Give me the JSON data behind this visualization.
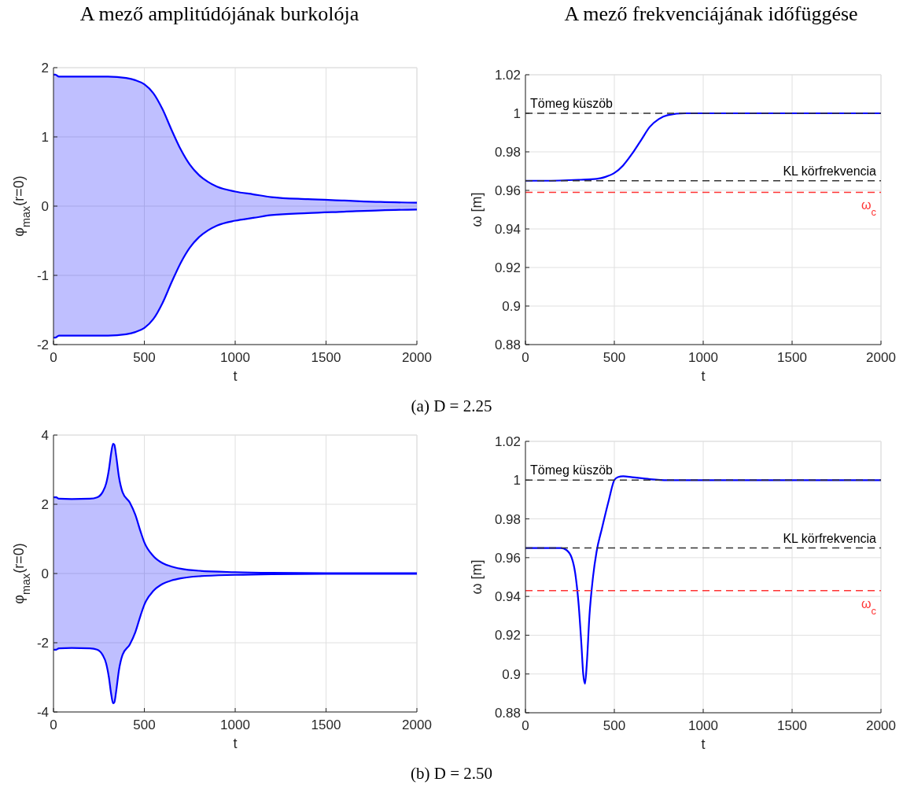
{
  "chart_data": [
    {
      "type": "line",
      "title": "A mező amplitúdójának burkolója",
      "xlabel": "t",
      "ylabel": "φ$_{max}$(r=0)",
      "xlim": [
        0,
        2000
      ],
      "xticks": [
        0,
        500,
        1000,
        1500,
        2000
      ],
      "ylim": [
        -2,
        2
      ],
      "yticks": [
        -2,
        -1,
        0,
        1,
        2
      ],
      "grid": true,
      "line_style": "solid",
      "series": [
        {
          "color": "#0000ff",
          "x": [
            0,
            10,
            30,
            100,
            300,
            400,
            450,
            500,
            550,
            600,
            650,
            700,
            750,
            800,
            850,
            900,
            1000,
            1100,
            1200,
            1400,
            1600,
            1800,
            2000
          ],
          "values": [
            1.9,
            1.9,
            1.87,
            1.87,
            1.87,
            1.85,
            1.82,
            1.76,
            1.63,
            1.4,
            1.1,
            0.82,
            0.6,
            0.45,
            0.35,
            0.28,
            0.21,
            0.17,
            0.13,
            0.1,
            0.08,
            0.06,
            0.05
          ],
          "lower": [
            -1.9,
            -1.9,
            -1.87,
            -1.87,
            -1.87,
            -1.85,
            -1.82,
            -1.76,
            -1.63,
            -1.4,
            -1.1,
            -0.82,
            -0.6,
            -0.45,
            -0.35,
            -0.28,
            -0.21,
            -0.17,
            -0.13,
            -0.1,
            -0.08,
            -0.06,
            -0.05
          ],
          "upper": [
            1.9,
            1.9,
            1.87,
            1.87,
            1.87,
            1.85,
            1.82,
            1.76,
            1.63,
            1.4,
            1.1,
            0.82,
            0.6,
            0.45,
            0.35,
            0.28,
            0.21,
            0.17,
            0.13,
            0.1,
            0.08,
            0.06,
            0.05
          ]
        },
        {
          "color": "#0000ff",
          "x": [
            0,
            10,
            30,
            100,
            300,
            400,
            450,
            500,
            550,
            600,
            650,
            700,
            750,
            800,
            850,
            900,
            1000,
            1100,
            1200,
            1400,
            1600,
            1800,
            2000
          ],
          "values": [
            -1.9,
            -1.9,
            -1.87,
            -1.87,
            -1.87,
            -1.85,
            -1.82,
            -1.76,
            -1.63,
            -1.4,
            -1.1,
            -0.82,
            -0.6,
            -0.45,
            -0.35,
            -0.28,
            -0.21,
            -0.17,
            -0.13,
            -0.1,
            -0.08,
            -0.06,
            -0.05
          ]
        }
      ],
      "annotations": [
        "(a) D = 2.25"
      ]
    },
    {
      "type": "line",
      "title": "A mező frekvenciájának időfüggése",
      "xlabel": "t",
      "ylabel": "ω [m]",
      "xlim": [
        0,
        2000
      ],
      "xticks": [
        0,
        500,
        1000,
        1500,
        2000
      ],
      "ylim": [
        0.88,
        1.02
      ],
      "yticks": [
        0.88,
        0.9,
        0.92,
        0.94,
        0.96,
        0.98,
        1,
        1.02
      ],
      "grid": true,
      "line_style": "solid",
      "series": [
        {
          "color": "#0000ff",
          "x": [
            0,
            100,
            300,
            400,
            450,
            500,
            550,
            600,
            650,
            700,
            750,
            800,
            900,
            1000,
            2000
          ],
          "values": [
            0.965,
            0.965,
            0.9655,
            0.966,
            0.967,
            0.969,
            0.973,
            0.979,
            0.986,
            0.993,
            0.997,
            0.999,
            1,
            1,
            1
          ]
        }
      ],
      "ref_lines": [
        {
          "axis": "y",
          "value": 1,
          "label": "Tömeg küszöb",
          "color": "#333333",
          "line_style": "dashed"
        },
        {
          "axis": "y",
          "value": 0.965,
          "label": "KL körfrekvencia",
          "color": "#333333",
          "line_style": "dashed"
        },
        {
          "axis": "y",
          "value": 0.959,
          "label": "ω$_{c}$",
          "color": "#ff3333",
          "line_style": "dashed"
        }
      ]
    },
    {
      "type": "line",
      "xlabel": "t",
      "ylabel": "φ$_{max}$(r=0)",
      "xlim": [
        0,
        2000
      ],
      "xticks": [
        0,
        500,
        1000,
        1500,
        2000
      ],
      "ylim": [
        -4,
        4
      ],
      "yticks": [
        -4,
        -2,
        0,
        2,
        4
      ],
      "grid": true,
      "line_style": "solid",
      "series": [
        {
          "color": "#0000ff",
          "x": [
            0,
            15,
            30,
            100,
            200,
            240,
            270,
            290,
            305,
            318,
            328,
            335,
            345,
            360,
            380,
            420,
            450,
            480,
            500,
            550,
            600,
            650,
            700,
            800,
            1000,
            1200,
            1500,
            2000
          ],
          "values": [
            2.2,
            2.2,
            2.16,
            2.15,
            2.16,
            2.2,
            2.35,
            2.6,
            3.0,
            3.5,
            3.75,
            3.72,
            3.4,
            2.8,
            2.35,
            2.05,
            1.7,
            1.2,
            0.9,
            0.5,
            0.3,
            0.2,
            0.14,
            0.08,
            0.04,
            0.02,
            0.01,
            0.01
          ],
          "lower": [
            -2.2,
            -2.2,
            -2.16,
            -2.15,
            -2.16,
            -2.2,
            -2.35,
            -2.6,
            -3.0,
            -3.5,
            -3.75,
            -3.72,
            -3.4,
            -2.8,
            -2.35,
            -2.05,
            -1.7,
            -1.2,
            -0.9,
            -0.5,
            -0.3,
            -0.2,
            -0.14,
            -0.08,
            -0.04,
            -0.02,
            -0.01,
            -0.01
          ],
          "upper": [
            2.2,
            2.2,
            2.16,
            2.15,
            2.16,
            2.2,
            2.35,
            2.6,
            3.0,
            3.5,
            3.75,
            3.72,
            3.4,
            2.8,
            2.35,
            2.05,
            1.7,
            1.2,
            0.9,
            0.5,
            0.3,
            0.2,
            0.14,
            0.08,
            0.04,
            0.02,
            0.01,
            0.01
          ]
        },
        {
          "color": "#0000ff",
          "x": [
            0,
            15,
            30,
            100,
            200,
            240,
            270,
            290,
            305,
            318,
            328,
            335,
            345,
            360,
            380,
            420,
            450,
            480,
            500,
            550,
            600,
            650,
            700,
            800,
            1000,
            1200,
            1500,
            2000
          ],
          "values": [
            -2.2,
            -2.2,
            -2.16,
            -2.15,
            -2.16,
            -2.2,
            -2.35,
            -2.6,
            -3.0,
            -3.5,
            -3.75,
            -3.72,
            -3.4,
            -2.8,
            -2.35,
            -2.05,
            -1.7,
            -1.2,
            -0.9,
            -0.5,
            -0.3,
            -0.2,
            -0.14,
            -0.08,
            -0.04,
            -0.02,
            -0.01,
            -0.01
          ]
        }
      ],
      "annotations": [
        "(b) D = 2.50"
      ]
    },
    {
      "type": "line",
      "xlabel": "t",
      "ylabel": "ω [m]",
      "xlim": [
        0,
        2000
      ],
      "xticks": [
        0,
        500,
        1000,
        1500,
        2000
      ],
      "ylim": [
        0.88,
        1.02
      ],
      "yticks": [
        0.88,
        0.9,
        0.92,
        0.94,
        0.96,
        0.98,
        1,
        1.02
      ],
      "grid": true,
      "line_style": "solid",
      "series": [
        {
          "color": "#0000ff",
          "x": [
            0,
            200,
            230,
            260,
            280,
            300,
            315,
            325,
            335,
            345,
            360,
            380,
            400,
            430,
            470,
            500,
            520,
            550,
            600,
            700,
            800,
            2000
          ],
          "values": [
            0.965,
            0.965,
            0.964,
            0.96,
            0.952,
            0.935,
            0.915,
            0.9,
            0.895,
            0.905,
            0.93,
            0.95,
            0.963,
            0.975,
            0.99,
            1,
            1.0015,
            1.002,
            1.0015,
            1.0005,
            1,
            1
          ]
        }
      ],
      "ref_lines": [
        {
          "axis": "y",
          "value": 1,
          "label": "Tömeg küszöb",
          "color": "#333333",
          "line_style": "dashed"
        },
        {
          "axis": "y",
          "value": 0.965,
          "label": "KL körfrekvencia",
          "color": "#333333",
          "line_style": "dashed"
        },
        {
          "axis": "y",
          "value": 0.943,
          "label": "ω$_{c}$",
          "color": "#ff3333",
          "line_style": "dashed"
        }
      ]
    }
  ]
}
